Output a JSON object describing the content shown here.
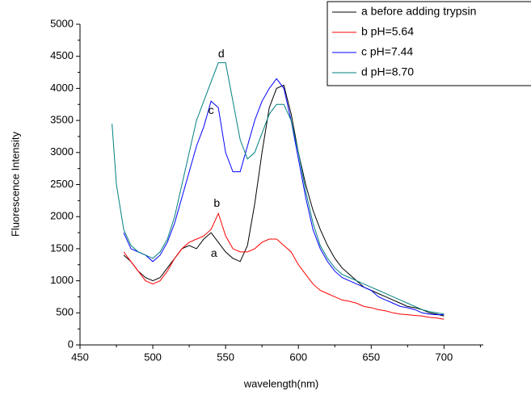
{
  "chart_data": {
    "type": "line",
    "xlabel": "wavelength(nm)",
    "ylabel": "Fluorescence Intensity",
    "xlim": [
      450,
      727
    ],
    "xticks": [
      450,
      500,
      550,
      600,
      650,
      700
    ],
    "ylim": [
      0,
      5000
    ],
    "yticks": [
      0,
      500,
      1000,
      1500,
      2000,
      2500,
      3000,
      3500,
      4000,
      4500,
      5000
    ],
    "legend": "top-right",
    "series": [
      {
        "name": "a before adding trypsin",
        "color": "#000000",
        "x": [
          480,
          485,
          490,
          495,
          500,
          505,
          510,
          515,
          520,
          525,
          530,
          535,
          540,
          545,
          550,
          555,
          560,
          565,
          570,
          575,
          580,
          585,
          590,
          595,
          600,
          605,
          610,
          615,
          620,
          625,
          630,
          635,
          640,
          645,
          650,
          655,
          660,
          665,
          670,
          675,
          680,
          685,
          690,
          695,
          700
        ],
        "values": [
          1400,
          1300,
          1150,
          1050,
          1000,
          1050,
          1200,
          1350,
          1500,
          1550,
          1500,
          1650,
          1750,
          1600,
          1450,
          1350,
          1300,
          1550,
          2200,
          3000,
          3700,
          4000,
          4050,
          3600,
          3000,
          2500,
          2100,
          1800,
          1550,
          1350,
          1200,
          1100,
          1000,
          900,
          850,
          800,
          750,
          700,
          650,
          600,
          580,
          550,
          500,
          480,
          450
        ]
      },
      {
        "name": "b pH=5.64",
        "color": "#ff0000",
        "x": [
          480,
          485,
          490,
          495,
          500,
          505,
          510,
          515,
          520,
          525,
          530,
          535,
          540,
          545,
          550,
          555,
          560,
          565,
          570,
          575,
          580,
          585,
          590,
          595,
          600,
          605,
          610,
          615,
          620,
          625,
          630,
          635,
          640,
          645,
          650,
          655,
          660,
          665,
          670,
          675,
          680,
          685,
          690,
          695,
          700
        ],
        "values": [
          1450,
          1300,
          1150,
          1000,
          950,
          1000,
          1150,
          1350,
          1500,
          1600,
          1650,
          1700,
          1800,
          2050,
          1700,
          1500,
          1450,
          1450,
          1500,
          1600,
          1650,
          1650,
          1550,
          1450,
          1250,
          1100,
          950,
          850,
          800,
          750,
          700,
          680,
          650,
          600,
          580,
          550,
          530,
          500,
          480,
          470,
          460,
          450,
          430,
          420,
          400
        ]
      },
      {
        "name": "c pH=7.44",
        "color": "#0000ff",
        "x": [
          480,
          485,
          490,
          495,
          500,
          505,
          510,
          515,
          520,
          525,
          530,
          535,
          540,
          545,
          550,
          555,
          560,
          565,
          570,
          575,
          580,
          585,
          590,
          595,
          600,
          605,
          610,
          615,
          620,
          625,
          630,
          635,
          640,
          645,
          650,
          655,
          660,
          665,
          670,
          675,
          680,
          685,
          690,
          695,
          700
        ],
        "values": [
          1750,
          1500,
          1450,
          1400,
          1300,
          1400,
          1600,
          1900,
          2300,
          2700,
          3100,
          3400,
          3800,
          3700,
          3000,
          2700,
          2700,
          3100,
          3500,
          3800,
          4000,
          4150,
          4000,
          3500,
          2900,
          2300,
          1800,
          1500,
          1300,
          1150,
          1050,
          1000,
          950,
          900,
          850,
          750,
          700,
          650,
          600,
          580,
          550,
          500,
          480,
          470,
          470
        ]
      },
      {
        "name": "d pH=8.70",
        "color": "#008080",
        "x": [
          472,
          475,
          480,
          485,
          490,
          495,
          500,
          505,
          510,
          515,
          520,
          525,
          530,
          535,
          540,
          545,
          550,
          555,
          560,
          565,
          570,
          575,
          580,
          585,
          590,
          595,
          600,
          605,
          610,
          615,
          620,
          625,
          630,
          635,
          640,
          645,
          650,
          655,
          660,
          665,
          670,
          675,
          680,
          685,
          690,
          695,
          700
        ],
        "values": [
          3450,
          2500,
          1800,
          1550,
          1450,
          1400,
          1350,
          1450,
          1650,
          2000,
          2500,
          3000,
          3500,
          3800,
          4100,
          4400,
          4400,
          3800,
          3200,
          2900,
          3000,
          3300,
          3600,
          3750,
          3750,
          3500,
          3000,
          2400,
          1900,
          1550,
          1350,
          1200,
          1100,
          1050,
          1000,
          950,
          900,
          850,
          800,
          750,
          700,
          650,
          600,
          550,
          520,
          500,
          480
        ]
      }
    ],
    "annotations": [
      {
        "text": "a",
        "x": 542,
        "y": 1420
      },
      {
        "text": "b",
        "x": 544,
        "y": 2200
      },
      {
        "text": "c",
        "x": 540,
        "y": 3650
      },
      {
        "text": "d",
        "x": 547,
        "y": 4530
      }
    ]
  }
}
